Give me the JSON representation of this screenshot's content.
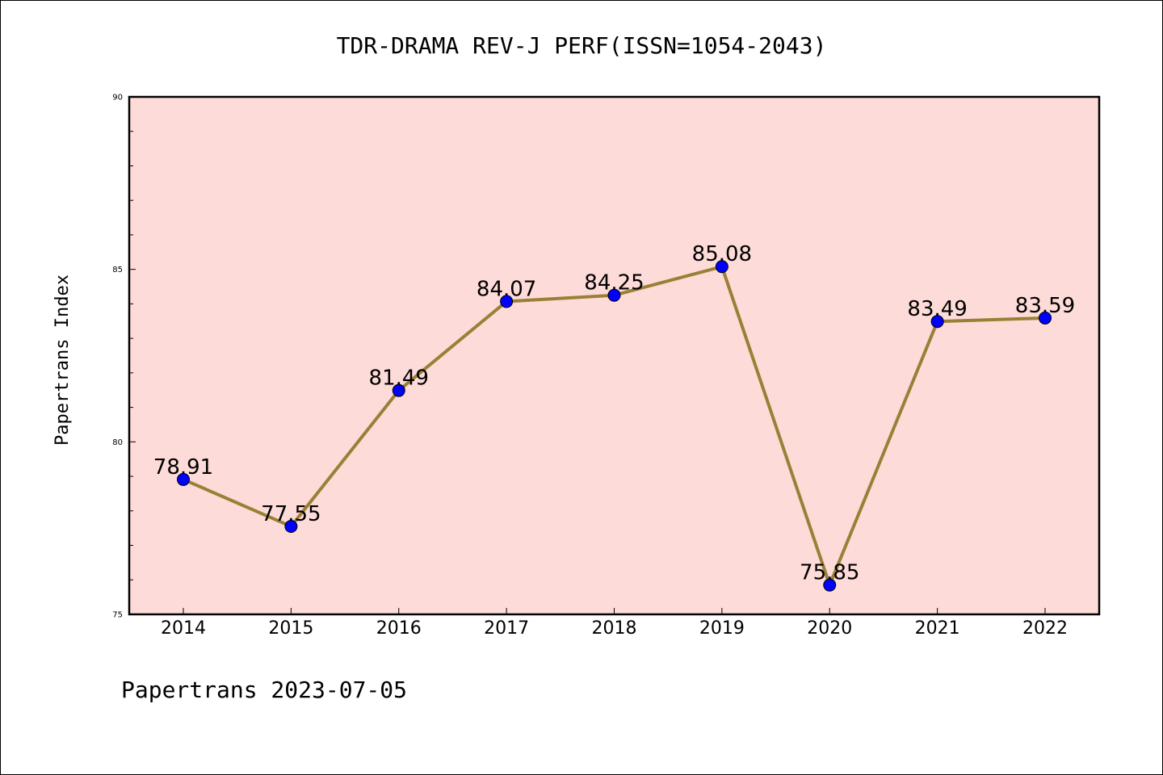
{
  "chart_data": {
    "type": "line",
    "title": "TDR-DRAMA REV-J PERF(ISSN=1054-2043)",
    "xlabel": "",
    "ylabel": "Papertrans Index",
    "categories": [
      "2014",
      "2015",
      "2016",
      "2017",
      "2018",
      "2019",
      "2020",
      "2021",
      "2022"
    ],
    "values": [
      78.91,
      77.55,
      81.49,
      84.07,
      84.25,
      85.08,
      75.85,
      83.49,
      83.59
    ],
    "data_labels": [
      "78.91",
      "77.55",
      "81.49",
      "84.07",
      "84.25",
      "85.08",
      "75.85",
      "83.49",
      "83.59"
    ],
    "ylim": [
      75,
      90
    ],
    "yticks": [
      "75",
      "80",
      "85",
      "90"
    ],
    "grid": false,
    "line_color": "#9a8036",
    "marker_color": "#0000ff",
    "plot_background": "#fddbd8"
  },
  "footer": "Papertrans 2023-07-05"
}
